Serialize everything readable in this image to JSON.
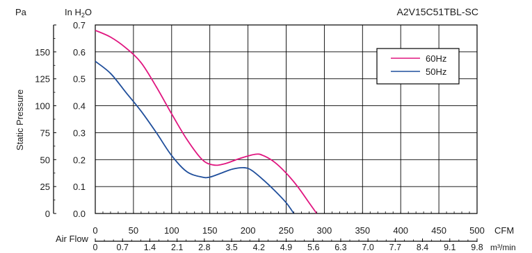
{
  "chart_data": {
    "type": "line",
    "title": "A2V15C51TBL-SC",
    "xlabel": "CFM",
    "xlabel_secondary": "Air Flow",
    "xlabel_secondary_unit": "m³/min",
    "ylabel": "Static Pressure",
    "ylabel_left_unit": "Pa",
    "ylabel_right_unit_prefix": "In H",
    "ylabel_right_unit_sub": "2",
    "ylabel_right_unit_suffix": "O",
    "xlim": [
      0,
      500
    ],
    "ylim": [
      0,
      0.7
    ],
    "x_ticks": [
      0,
      50,
      100,
      150,
      200,
      250,
      300,
      350,
      400,
      450,
      500
    ],
    "x_secondary_ticks": [
      "0",
      "0.7",
      "1.4",
      "2.1",
      "2.8",
      "3.5",
      "4.2",
      "4.9",
      "5.6",
      "6.3",
      "7.0",
      "7.7",
      "8.4",
      "9.1",
      "9.8"
    ],
    "y_ticks_inh2o": [
      "0.0",
      "0.1",
      "0.2",
      "0.3",
      "0.4",
      "0.5",
      "0.6",
      "0.7"
    ],
    "y_ticks_pa": [
      "0",
      "25",
      "50",
      "75",
      "100",
      "125",
      "150",
      ""
    ],
    "grid": true,
    "legend_position": "top-right",
    "series": [
      {
        "name": "60Hz",
        "color": "#e0157f",
        "x": [
          0,
          20,
          40,
          60,
          80,
          100,
          120,
          140,
          155,
          170,
          190,
          210,
          220,
          235,
          250,
          265,
          280,
          290
        ],
        "y": [
          0.68,
          0.655,
          0.615,
          0.56,
          0.47,
          0.37,
          0.275,
          0.2,
          0.18,
          0.185,
          0.205,
          0.22,
          0.215,
          0.19,
          0.15,
          0.1,
          0.04,
          0.0
        ]
      },
      {
        "name": "50Hz",
        "color": "#1f4e9b",
        "x": [
          0,
          20,
          40,
          60,
          80,
          100,
          120,
          140,
          150,
          165,
          180,
          195,
          205,
          220,
          235,
          250,
          260
        ],
        "y": [
          0.565,
          0.52,
          0.45,
          0.38,
          0.3,
          0.215,
          0.155,
          0.135,
          0.135,
          0.15,
          0.165,
          0.17,
          0.16,
          0.125,
          0.085,
          0.04,
          0.0
        ]
      }
    ]
  }
}
